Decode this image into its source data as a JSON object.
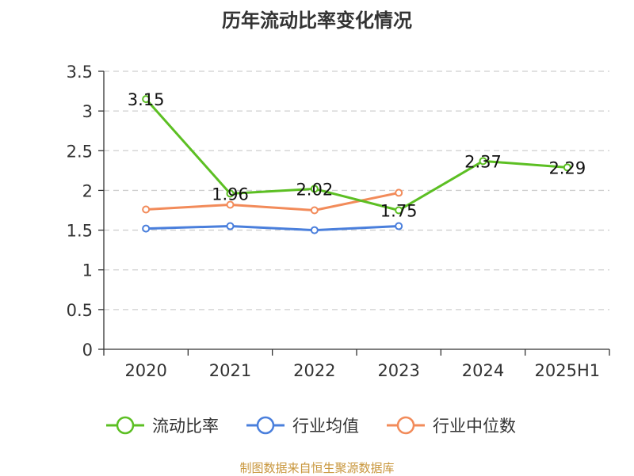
{
  "chart_data": {
    "type": "line",
    "title": "历年流动比率变化情况",
    "categories": [
      "2020",
      "2021",
      "2022",
      "2023",
      "2024",
      "2025H1"
    ],
    "ylim": [
      0,
      3.5
    ],
    "yticks": [
      "0",
      "0.5",
      "1",
      "1.5",
      "2",
      "2.5",
      "3",
      "3.5"
    ],
    "grid": true,
    "legend_position": "bottom",
    "series": [
      {
        "name": "流动比率",
        "color": "#5cbf23",
        "values": [
          3.15,
          1.96,
          2.02,
          1.75,
          2.37,
          2.29
        ],
        "labels": [
          "3.15",
          "1.96",
          "2.02",
          "1.75",
          "2.37",
          "2.29"
        ]
      },
      {
        "name": "行业均值",
        "color": "#4a7fdc",
        "values": [
          1.52,
          1.55,
          1.5,
          1.55,
          null,
          null
        ]
      },
      {
        "name": "行业中位数",
        "color": "#f28b5a",
        "values": [
          1.76,
          1.82,
          1.75,
          1.97,
          null,
          null
        ]
      }
    ]
  },
  "source": {
    "text": "制图数据来自恒生聚源数据库",
    "color": "#c8963c"
  }
}
